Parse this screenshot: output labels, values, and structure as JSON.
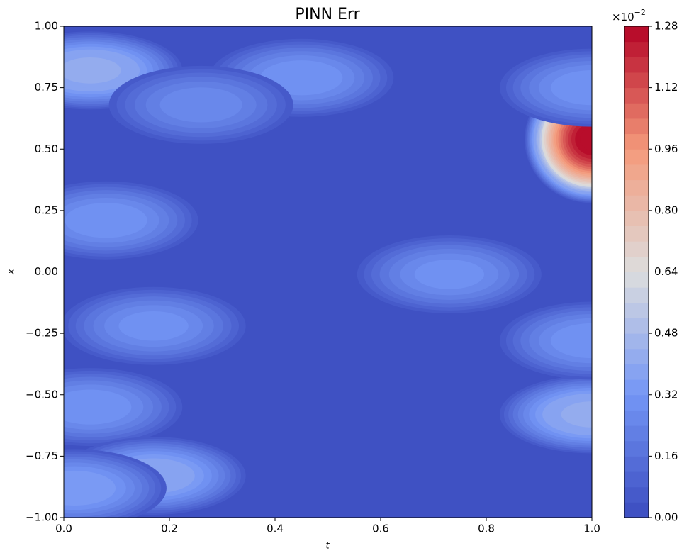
{
  "chart_data": {
    "type": "contourf",
    "title": "PINN Err",
    "x_label": "t",
    "y_label": "x",
    "xlim": [
      0,
      1
    ],
    "ylim": [
      -1,
      1
    ],
    "xticks": [
      {
        "value": 0,
        "label": "0.0"
      },
      0.2,
      0.4,
      0.6,
      0.8,
      {
        "value": 1,
        "label": "1.0"
      }
    ],
    "yticks": [
      {
        "value": -1,
        "label": "−1.00"
      },
      {
        "value": -0.75,
        "label": "−0.75"
      },
      {
        "value": -0.5,
        "label": "−0.50"
      },
      {
        "value": -0.25,
        "label": "−0.25"
      },
      {
        "value": 0,
        "label": "0.00"
      },
      0.25,
      {
        "value": 0.5,
        "label": "0.50"
      },
      0.75,
      {
        "value": 1,
        "label": "1.00"
      }
    ],
    "colormap": "coolwarm",
    "colorbar_lim": [
      0,
      1.28
    ],
    "colorbar_levels": 32,
    "colorbar_ticks": [
      {
        "value": 0,
        "label": "0.00"
      },
      0.16,
      0.32,
      0.48,
      0.64,
      {
        "value": 0.8,
        "label": "0.80"
      },
      0.96,
      1.12,
      1.28
    ],
    "colorbar_scale": {
      "base": "×10",
      "exponent": "−2"
    },
    "hotspots": [
      {
        "t": 0.05,
        "x": 0.82,
        "value": 0.45
      },
      {
        "t": 0.45,
        "x": 0.79,
        "value": 0.3
      },
      {
        "t": 0.26,
        "x": 0.68,
        "value": 0.25
      },
      {
        "t": 1.0,
        "x": 0.54,
        "value": 1.28
      },
      {
        "t": 1.0,
        "x": 0.75,
        "value": 0.3
      },
      {
        "t": 0.08,
        "x": 0.21,
        "value": 0.3
      },
      {
        "t": 0.73,
        "x": -0.01,
        "value": 0.28
      },
      {
        "t": 0.17,
        "x": -0.22,
        "value": 0.28
      },
      {
        "t": 0.05,
        "x": -0.55,
        "value": 0.3
      },
      {
        "t": 0.17,
        "x": -0.83,
        "value": 0.4
      },
      {
        "t": 0.02,
        "x": -0.88,
        "value": 0.35
      },
      {
        "t": 1.0,
        "x": -0.58,
        "value": 0.45
      },
      {
        "t": 1.0,
        "x": -0.28,
        "value": 0.3
      }
    ]
  }
}
